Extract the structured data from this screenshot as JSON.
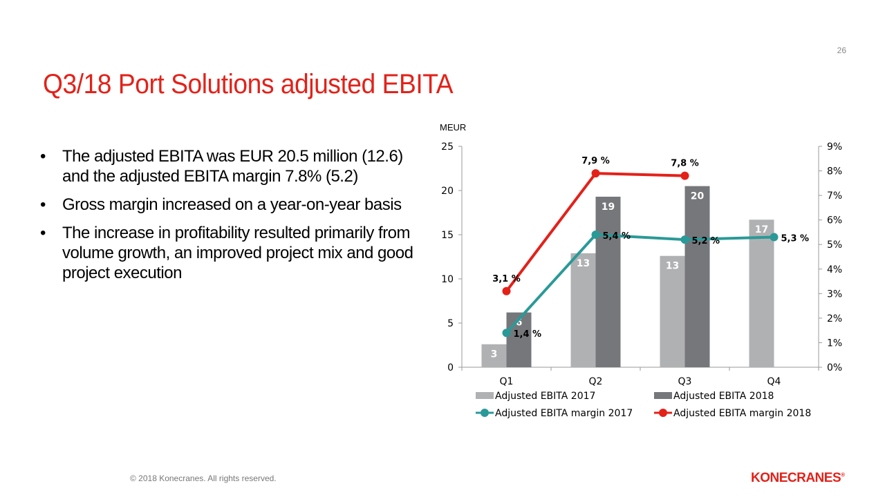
{
  "page_number": "26",
  "title": "Q3/18 Port Solutions adjusted EBITA",
  "bullets": [
    "The adjusted EBITA was EUR 20.5 million (12.6) and the adjusted EBITA margin 7.8% (5.2)",
    "Gross margin increased on a year-on-year basis",
    "The increase in profitability resulted primarily from volume growth, an improved project mix and good project execution"
  ],
  "bullet_symbol": "•",
  "footer": "© 2018 Konecranes. All rights reserved.",
  "logo_text": "KONECRANES",
  "logo_mark": "®",
  "colors": {
    "title": "#e32119",
    "bar_2017": "#b0b1b3",
    "bar_2018": "#75777b",
    "line_2017": "#2a9a98",
    "line_2018": "#e32119"
  },
  "chart_data": {
    "type": "bar",
    "unit_label": "MEUR",
    "categories": [
      "Q1",
      "Q2",
      "Q3",
      "Q4"
    ],
    "y_left_ticks": [
      "0",
      "5",
      "10",
      "15",
      "20",
      "25"
    ],
    "ylim_left": [
      0,
      25
    ],
    "y_right_ticks": [
      "0%",
      "1%",
      "2%",
      "3%",
      "4%",
      "5%",
      "6%",
      "7%",
      "8%",
      "9%"
    ],
    "ylim_right": [
      0,
      9
    ],
    "bar_series": [
      {
        "name": "Adjusted EBITA 2017",
        "values": [
          2.6,
          12.9,
          12.6,
          16.7
        ],
        "labels": [
          "3",
          "13",
          "13",
          "17"
        ]
      },
      {
        "name": "Adjusted EBITA 2018",
        "values": [
          6.2,
          19.3,
          20.5,
          null
        ],
        "labels": [
          "6",
          "19",
          "20",
          ""
        ]
      }
    ],
    "line_series": [
      {
        "name": "Adjusted EBITA margin 2017",
        "values": [
          1.4,
          5.4,
          5.2,
          5.3
        ],
        "labels": [
          "1,4 %",
          "5,4 %",
          "5,2 %",
          "5,3 %"
        ]
      },
      {
        "name": "Adjusted EBITA margin 2018",
        "values": [
          3.1,
          7.9,
          7.8,
          null
        ],
        "labels": [
          "3,1 %",
          "7,9 %",
          "7,8 %",
          ""
        ]
      }
    ],
    "legend_position": "bottom"
  }
}
